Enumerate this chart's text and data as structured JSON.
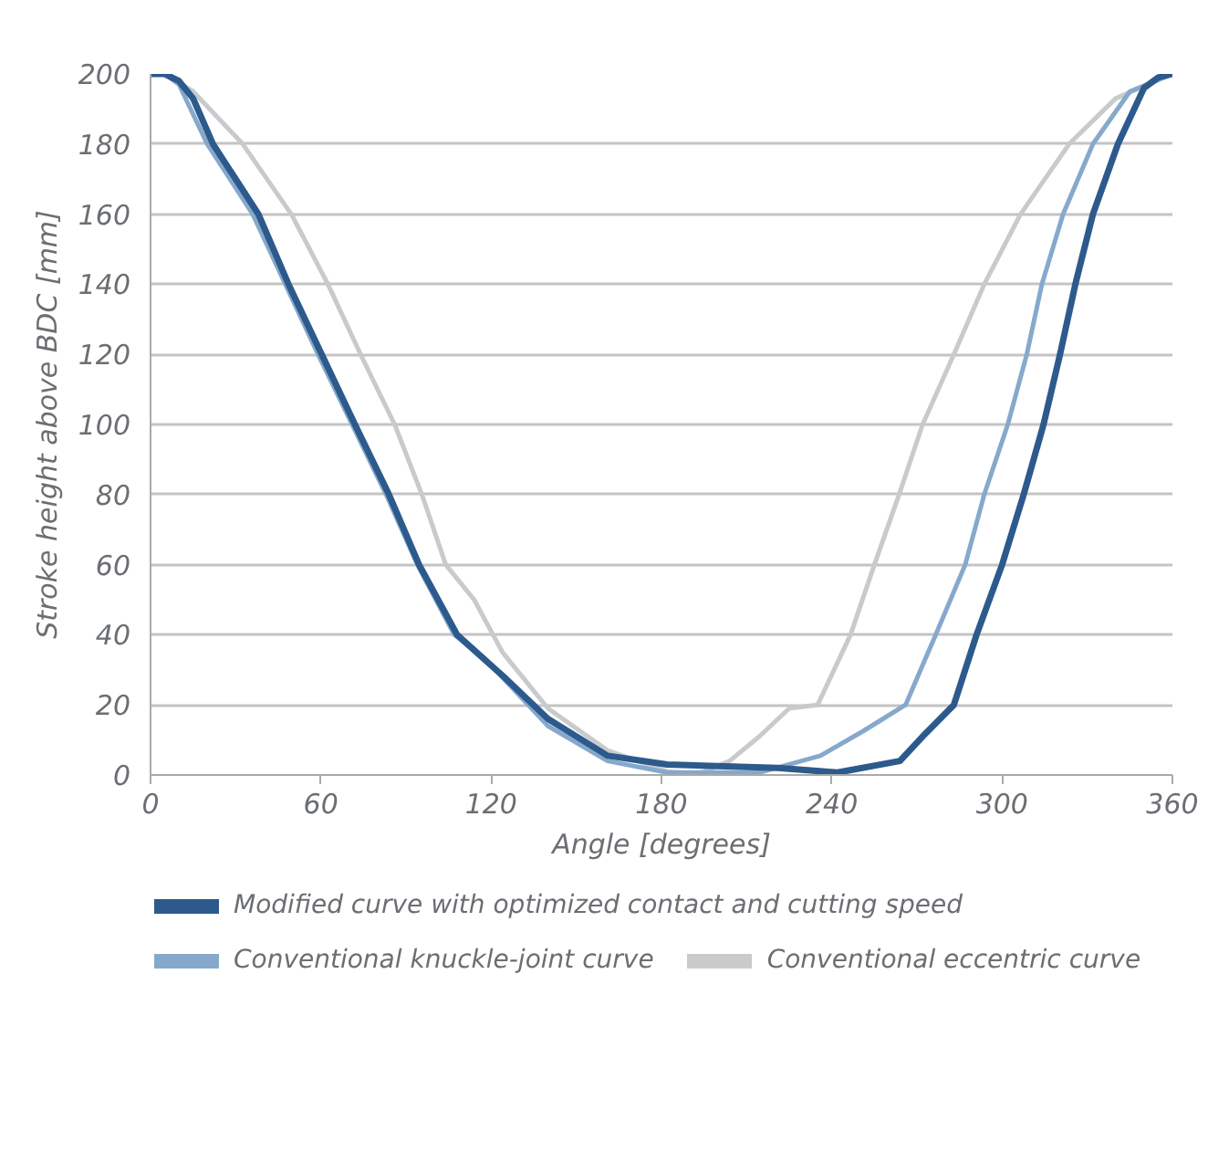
{
  "chart_data": {
    "type": "line",
    "xlabel": "Angle [degrees]",
    "ylabel": "Stroke height above BDC [mm]",
    "xlim": [
      0,
      360
    ],
    "ylim": [
      0,
      200
    ],
    "xticks": [
      0,
      60,
      120,
      180,
      240,
      300,
      360
    ],
    "yticks": [
      0,
      20,
      40,
      60,
      80,
      100,
      120,
      140,
      160,
      180,
      200
    ],
    "grid": "y",
    "legend": "bottom",
    "line_style": "solid",
    "marker": "none",
    "series": [
      {
        "name": "Modified curve with optimized contact and cutting speed",
        "color": "#2d5a8c",
        "x": [
          0,
          5,
          10,
          15,
          22,
          38,
          48.6,
          60.3,
          72,
          84,
          94.6,
          108,
          124.5,
          140,
          161,
          182,
          221,
          242,
          264,
          272,
          283,
          291,
          300,
          307.6,
          314.6,
          320.4,
          325.8,
          332,
          340.8,
          350,
          355,
          360
        ],
        "values": [
          200,
          200,
          198,
          193,
          180,
          160,
          140,
          120,
          100,
          80,
          60,
          40,
          28,
          16,
          5.5,
          3,
          2,
          0.7,
          4,
          11,
          20,
          40,
          60,
          80,
          100,
          120,
          140,
          160,
          180,
          196,
          199,
          200
        ]
      },
      {
        "name": "Conventional knuckle-joint curve",
        "color": "#86a9cb",
        "x": [
          0,
          5,
          10,
          20,
          36,
          47.5,
          59,
          71,
          83,
          94,
          107,
          118,
          140,
          161,
          182,
          214.5,
          236,
          251,
          266,
          276.6,
          287,
          293.7,
          302,
          308.7,
          314,
          321.5,
          332,
          345,
          360
        ],
        "values": [
          200,
          200,
          197,
          180,
          160,
          140,
          120,
          100,
          80,
          60,
          40,
          33,
          14,
          4,
          0.7,
          0.7,
          5.5,
          12.5,
          20,
          40,
          60,
          80,
          100,
          120,
          140,
          160,
          180,
          195,
          200
        ]
      },
      {
        "name": "Conventional eccentric curve",
        "color": "#c8cacc",
        "x": [
          0,
          5,
          15,
          32.5,
          49.6,
          62.5,
          74,
          86,
          95.6,
          104,
          114,
          124,
          140,
          161,
          182,
          193,
          204,
          214.5,
          225,
          235,
          246.6,
          255,
          263.7,
          272,
          283,
          293.7,
          306.5,
          323.6,
          340,
          360
        ],
        "values": [
          200,
          200,
          195,
          180,
          160,
          140,
          120,
          100,
          80,
          60,
          50,
          35,
          19,
          7,
          1,
          0.3,
          4,
          11,
          19,
          20,
          40,
          60,
          80,
          100,
          120,
          140,
          160,
          180,
          193,
          200
        ]
      }
    ]
  }
}
